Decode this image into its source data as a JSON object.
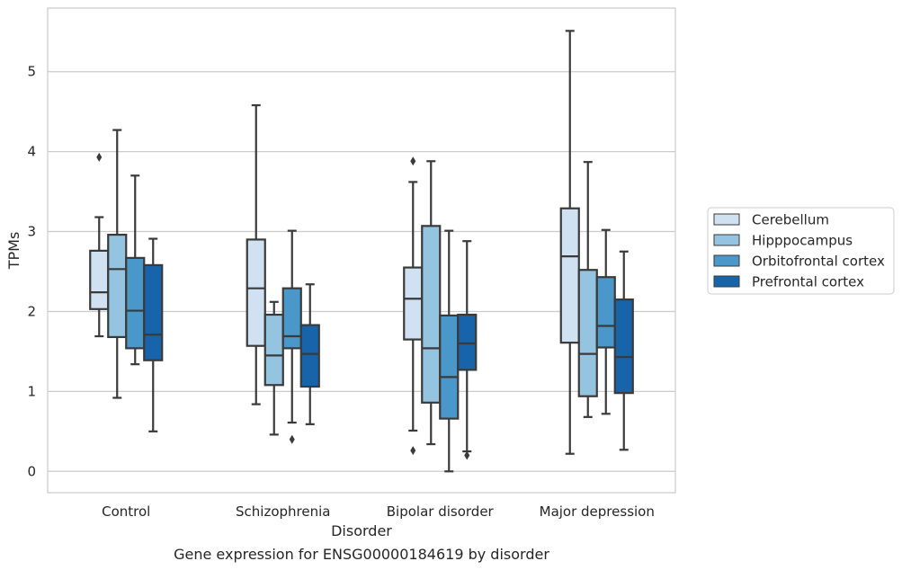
{
  "chart_data": {
    "type": "boxplot",
    "caption": "Gene expression for ENSG00000184619 by disorder",
    "xlabel": "Disorder",
    "ylabel": "TPMs",
    "ylim": [
      -0.27,
      5.8
    ],
    "yticks": [
      0,
      1,
      2,
      3,
      4,
      5
    ],
    "grid": true,
    "legend_position": "right",
    "categories": [
      "Control",
      "Schizophrenia",
      "Bipolar disorder",
      "Major depression"
    ],
    "series": [
      {
        "name": "Cerebellum",
        "color": "#d0e1f2",
        "boxes": [
          {
            "whislo": 1.69,
            "q1": 2.03,
            "med": 2.24,
            "q3": 2.76,
            "whishi": 3.18,
            "fliers": [
              3.93
            ]
          },
          {
            "whislo": 0.84,
            "q1": 1.57,
            "med": 2.29,
            "q3": 2.9,
            "whishi": 4.58,
            "fliers": []
          },
          {
            "whislo": 0.51,
            "q1": 1.65,
            "med": 2.16,
            "q3": 2.55,
            "whishi": 3.62,
            "fliers": [
              0.26,
              3.88
            ]
          },
          {
            "whislo": 0.22,
            "q1": 1.61,
            "med": 2.69,
            "q3": 3.29,
            "whishi": 5.51,
            "fliers": []
          }
        ]
      },
      {
        "name": "Hipppocampus",
        "color": "#94c4df",
        "boxes": [
          {
            "whislo": 0.92,
            "q1": 1.68,
            "med": 2.53,
            "q3": 2.96,
            "whishi": 4.27,
            "fliers": []
          },
          {
            "whislo": 0.46,
            "q1": 1.08,
            "med": 1.45,
            "q3": 1.96,
            "whishi": 2.12,
            "fliers": []
          },
          {
            "whislo": 0.34,
            "q1": 0.86,
            "med": 1.54,
            "q3": 3.07,
            "whishi": 3.88,
            "fliers": []
          },
          {
            "whislo": 0.68,
            "q1": 0.94,
            "med": 1.47,
            "q3": 2.52,
            "whishi": 3.87,
            "fliers": []
          }
        ]
      },
      {
        "name": "Orbitofrontal cortex",
        "color": "#4a98c9",
        "boxes": [
          {
            "whislo": 1.34,
            "q1": 1.54,
            "med": 2.01,
            "q3": 2.67,
            "whishi": 3.7,
            "fliers": []
          },
          {
            "whislo": 0.61,
            "q1": 1.54,
            "med": 1.69,
            "q3": 2.29,
            "whishi": 3.01,
            "fliers": [
              0.4
            ]
          },
          {
            "whislo": 0.0,
            "q1": 0.66,
            "med": 1.18,
            "q3": 1.95,
            "whishi": 3.01,
            "fliers": []
          },
          {
            "whislo": 0.72,
            "q1": 1.55,
            "med": 1.82,
            "q3": 2.43,
            "whishi": 3.02,
            "fliers": []
          }
        ]
      },
      {
        "name": "Prefrontal cortex",
        "color": "#1764ab",
        "boxes": [
          {
            "whislo": 0.5,
            "q1": 1.39,
            "med": 1.71,
            "q3": 2.58,
            "whishi": 2.91,
            "fliers": []
          },
          {
            "whislo": 0.59,
            "q1": 1.06,
            "med": 1.47,
            "q3": 1.83,
            "whishi": 2.34,
            "fliers": []
          },
          {
            "whislo": 0.25,
            "q1": 1.27,
            "med": 1.6,
            "q3": 1.96,
            "whishi": 2.88,
            "fliers": [
              0.2
            ]
          },
          {
            "whislo": 0.27,
            "q1": 0.98,
            "med": 1.43,
            "q3": 2.15,
            "whishi": 2.75,
            "fliers": []
          }
        ]
      }
    ]
  }
}
